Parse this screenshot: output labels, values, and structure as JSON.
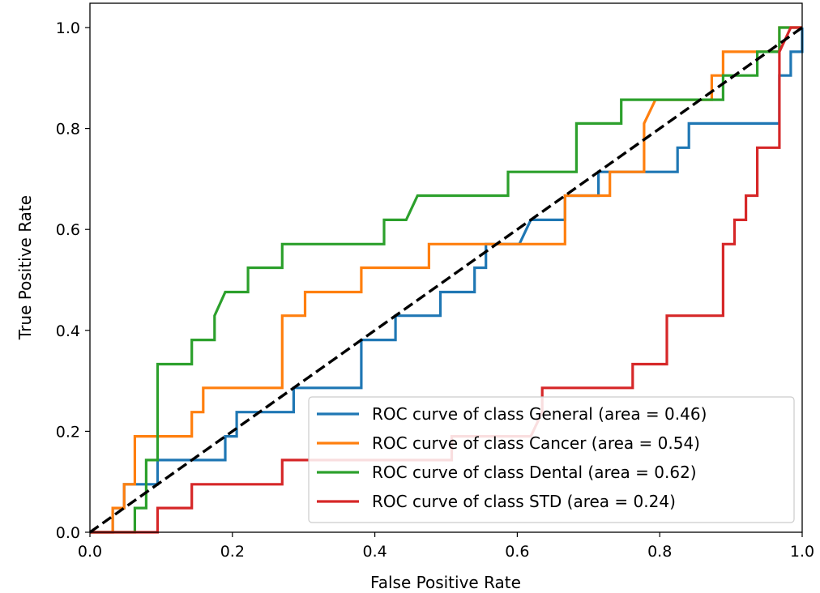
{
  "chart_data": {
    "type": "line",
    "title": "",
    "xlabel": "False Positive Rate",
    "ylabel": "True Positive Rate",
    "xlim": [
      0.0,
      1.0
    ],
    "ylim": [
      0.0,
      1.05
    ],
    "x_ticks": [
      "0.0",
      "0.2",
      "0.4",
      "0.6",
      "0.8",
      "1.0"
    ],
    "y_ticks": [
      "0.0",
      "0.2",
      "0.4",
      "0.6",
      "0.8",
      "1.0"
    ],
    "grid": false,
    "legend_position": "lower-right",
    "diagonal": {
      "label": "",
      "color": "#000000",
      "style": "dashed",
      "points": [
        [
          0,
          0
        ],
        [
          1,
          1
        ]
      ]
    },
    "series": [
      {
        "name": "ROC curve of class General (area = 0.46)",
        "color": "#1f77b4",
        "points": [
          [
            0,
            0
          ],
          [
            0.032,
            0
          ],
          [
            0.032,
            0.048
          ],
          [
            0.048,
            0.048
          ],
          [
            0.048,
            0.095
          ],
          [
            0.095,
            0.095
          ],
          [
            0.095,
            0.143
          ],
          [
            0.19,
            0.143
          ],
          [
            0.19,
            0.19
          ],
          [
            0.206,
            0.19
          ],
          [
            0.206,
            0.238
          ],
          [
            0.286,
            0.238
          ],
          [
            0.286,
            0.286
          ],
          [
            0.381,
            0.286
          ],
          [
            0.381,
            0.381
          ],
          [
            0.429,
            0.381
          ],
          [
            0.429,
            0.429
          ],
          [
            0.492,
            0.429
          ],
          [
            0.492,
            0.476
          ],
          [
            0.54,
            0.476
          ],
          [
            0.54,
            0.524
          ],
          [
            0.556,
            0.524
          ],
          [
            0.556,
            0.571
          ],
          [
            0.603,
            0.571
          ],
          [
            0.619,
            0.619
          ],
          [
            0.667,
            0.619
          ],
          [
            0.667,
            0.667
          ],
          [
            0.714,
            0.667
          ],
          [
            0.714,
            0.714
          ],
          [
            0.825,
            0.714
          ],
          [
            0.825,
            0.762
          ],
          [
            0.841,
            0.762
          ],
          [
            0.841,
            0.81
          ],
          [
            0.968,
            0.81
          ],
          [
            0.968,
            0.905
          ],
          [
            0.984,
            0.905
          ],
          [
            0.984,
            0.952
          ],
          [
            1.0,
            0.952
          ],
          [
            1.0,
            1.0
          ]
        ]
      },
      {
        "name": "ROC curve of class Cancer (area = 0.54)",
        "color": "#ff7f0e",
        "points": [
          [
            0,
            0
          ],
          [
            0.032,
            0
          ],
          [
            0.032,
            0.048
          ],
          [
            0.048,
            0.048
          ],
          [
            0.048,
            0.095
          ],
          [
            0.063,
            0.095
          ],
          [
            0.063,
            0.19
          ],
          [
            0.143,
            0.19
          ],
          [
            0.143,
            0.238
          ],
          [
            0.159,
            0.238
          ],
          [
            0.159,
            0.286
          ],
          [
            0.27,
            0.286
          ],
          [
            0.27,
            0.429
          ],
          [
            0.302,
            0.429
          ],
          [
            0.302,
            0.476
          ],
          [
            0.381,
            0.476
          ],
          [
            0.381,
            0.524
          ],
          [
            0.476,
            0.524
          ],
          [
            0.476,
            0.571
          ],
          [
            0.667,
            0.571
          ],
          [
            0.667,
            0.667
          ],
          [
            0.73,
            0.667
          ],
          [
            0.73,
            0.714
          ],
          [
            0.778,
            0.714
          ],
          [
            0.778,
            0.81
          ],
          [
            0.794,
            0.857
          ],
          [
            0.873,
            0.857
          ],
          [
            0.873,
            0.905
          ],
          [
            0.889,
            0.905
          ],
          [
            0.889,
            0.952
          ],
          [
            0.968,
            0.952
          ],
          [
            0.968,
            1.0
          ],
          [
            1.0,
            1.0
          ]
        ]
      },
      {
        "name": "ROC curve of class Dental (area = 0.62)",
        "color": "#2ca02c",
        "points": [
          [
            0,
            0
          ],
          [
            0.063,
            0
          ],
          [
            0.063,
            0.048
          ],
          [
            0.079,
            0.048
          ],
          [
            0.079,
            0.143
          ],
          [
            0.095,
            0.143
          ],
          [
            0.095,
            0.333
          ],
          [
            0.143,
            0.333
          ],
          [
            0.143,
            0.381
          ],
          [
            0.175,
            0.381
          ],
          [
            0.175,
            0.429
          ],
          [
            0.19,
            0.476
          ],
          [
            0.222,
            0.476
          ],
          [
            0.222,
            0.524
          ],
          [
            0.27,
            0.524
          ],
          [
            0.27,
            0.571
          ],
          [
            0.413,
            0.571
          ],
          [
            0.413,
            0.619
          ],
          [
            0.444,
            0.619
          ],
          [
            0.46,
            0.667
          ],
          [
            0.587,
            0.667
          ],
          [
            0.587,
            0.714
          ],
          [
            0.683,
            0.714
          ],
          [
            0.683,
            0.81
          ],
          [
            0.746,
            0.81
          ],
          [
            0.746,
            0.857
          ],
          [
            0.889,
            0.857
          ],
          [
            0.889,
            0.905
          ],
          [
            0.937,
            0.905
          ],
          [
            0.937,
            0.952
          ],
          [
            0.968,
            0.952
          ],
          [
            0.968,
            1.0
          ],
          [
            1.0,
            1.0
          ]
        ]
      },
      {
        "name": "ROC curve of class STD (area = 0.24)",
        "color": "#d62728",
        "points": [
          [
            0,
            0
          ],
          [
            0.095,
            0
          ],
          [
            0.095,
            0.048
          ],
          [
            0.143,
            0.048
          ],
          [
            0.143,
            0.095
          ],
          [
            0.27,
            0.095
          ],
          [
            0.27,
            0.143
          ],
          [
            0.508,
            0.143
          ],
          [
            0.508,
            0.19
          ],
          [
            0.619,
            0.19
          ],
          [
            0.635,
            0.238
          ],
          [
            0.635,
            0.286
          ],
          [
            0.762,
            0.286
          ],
          [
            0.762,
            0.333
          ],
          [
            0.81,
            0.333
          ],
          [
            0.81,
            0.429
          ],
          [
            0.889,
            0.429
          ],
          [
            0.889,
            0.571
          ],
          [
            0.905,
            0.571
          ],
          [
            0.905,
            0.619
          ],
          [
            0.921,
            0.619
          ],
          [
            0.921,
            0.667
          ],
          [
            0.937,
            0.667
          ],
          [
            0.937,
            0.762
          ],
          [
            0.968,
            0.762
          ],
          [
            0.968,
            0.952
          ],
          [
            0.984,
            1.0
          ],
          [
            1.0,
            1.0
          ]
        ]
      }
    ]
  }
}
